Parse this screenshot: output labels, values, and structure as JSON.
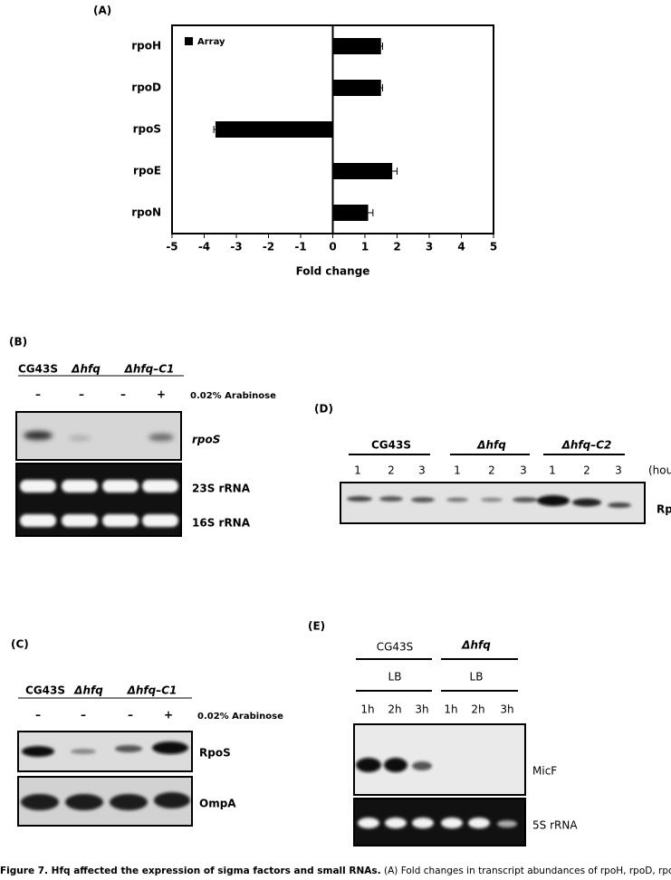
{
  "chart_data": {
    "type": "bar",
    "orientation": "horizontal",
    "panel_label": "(A)",
    "categories": [
      "rpoH",
      "rpoD",
      "rpoS",
      "rpoE",
      "rpoN"
    ],
    "values": [
      1.5,
      1.5,
      -3.65,
      1.85,
      1.1
    ],
    "errors": [
      0.05,
      0.05,
      0.05,
      0.15,
      0.15
    ],
    "legend_label": "Array",
    "legend": "upper left",
    "color": "#000000",
    "xlabel": "Fold change",
    "xlim": [
      -5,
      5
    ],
    "xticks": [
      -5,
      -4,
      -3,
      -2,
      -1,
      0,
      1,
      2,
      3,
      4,
      5
    ]
  },
  "panel_b": {
    "label": "(B)",
    "strains": [
      "CG43S",
      "Δhfq",
      "Δhfq–C1"
    ],
    "conditions": [
      "–",
      "–",
      "–",
      "+"
    ],
    "condition_label": "0.02% Arabinose",
    "blots": [
      "rpoS",
      "23S rRNA",
      "16S rRNA"
    ]
  },
  "panel_c": {
    "label": "(C)",
    "strains": [
      "CG43S",
      "Δhfq",
      "Δhfq–C1"
    ],
    "conditions": [
      "–",
      "–",
      "–",
      "+"
    ],
    "condition_label": "0.02% Arabinose",
    "blots": [
      "RpoS",
      "OmpA"
    ]
  },
  "panel_d": {
    "label": "(D)",
    "strains": [
      "CG43S",
      "Δhfq",
      "Δhfq–C2"
    ],
    "hours": [
      "1",
      "2",
      "3"
    ],
    "unit": "(hour)",
    "blot": "RpoE"
  },
  "panel_e": {
    "label": "(E)",
    "strains": [
      "CG43S",
      "Δhfq"
    ],
    "media": [
      "LB",
      "LB"
    ],
    "times": [
      "1h",
      "2h",
      "3h"
    ],
    "blots": [
      "MicF",
      "5S rRNA"
    ]
  },
  "caption": {
    "bold": "Figure 7. Hfq affected the expression of sigma factors and small RNAs.",
    "text": "(A) Fold changes in transcript abundances of rpoH, rpoD, rpoS, rpoE,"
  }
}
